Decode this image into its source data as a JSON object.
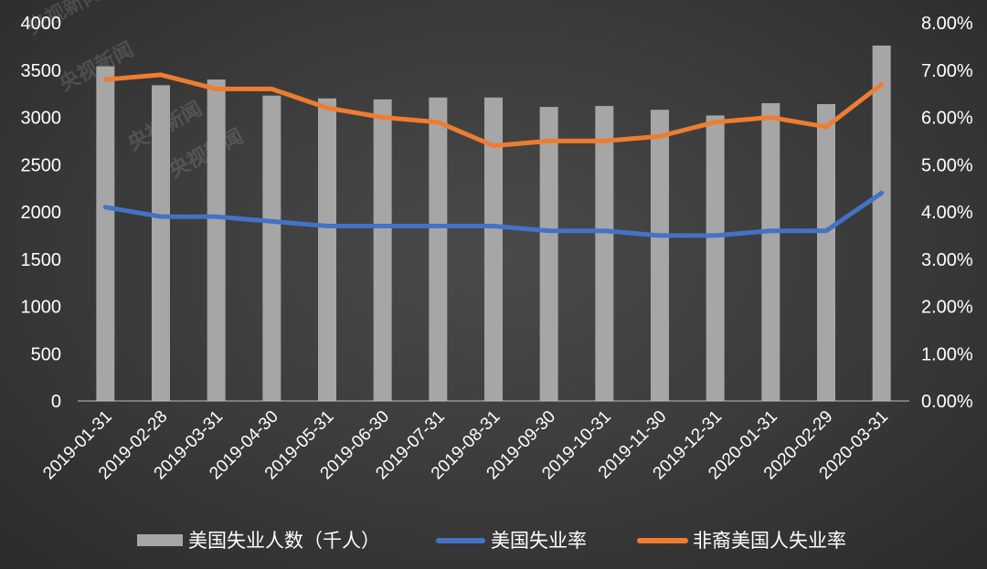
{
  "chart_data": {
    "type": "bar+line",
    "categories": [
      "2019-01-31",
      "2019-02-28",
      "2019-03-31",
      "2019-04-30",
      "2019-05-31",
      "2019-06-30",
      "2019-07-31",
      "2019-08-31",
      "2019-09-30",
      "2019-10-31",
      "2019-11-30",
      "2019-12-31",
      "2020-01-31",
      "2020-02-29",
      "2020-03-31"
    ],
    "bar_series": {
      "name": "美国失业人数（千人）",
      "color": "#a6a6a6",
      "axis": "left",
      "values": [
        3540,
        3340,
        3400,
        3230,
        3200,
        3190,
        3210,
        3210,
        3110,
        3120,
        3080,
        3020,
        3150,
        3140,
        3760
      ]
    },
    "line_series": [
      {
        "name": "美国失业率",
        "color": "#4472c4",
        "axis": "right",
        "values": [
          0.041,
          0.039,
          0.039,
          0.038,
          0.037,
          0.037,
          0.037,
          0.037,
          0.036,
          0.036,
          0.035,
          0.035,
          0.036,
          0.036,
          0.044
        ]
      },
      {
        "name": "非裔美国人失业率",
        "color": "#ed7d31",
        "axis": "right",
        "values": [
          0.068,
          0.069,
          0.066,
          0.066,
          0.062,
          0.06,
          0.059,
          0.054,
          0.055,
          0.055,
          0.056,
          0.059,
          0.06,
          0.058,
          0.067
        ]
      }
    ],
    "y_left": {
      "min": 0,
      "max": 4000,
      "ticks": [
        "0",
        "500",
        "1000",
        "1500",
        "2000",
        "2500",
        "3000",
        "3500",
        "4000"
      ]
    },
    "y_right": {
      "min": 0,
      "max": 0.08,
      "ticks": [
        "0.00%",
        "1.00%",
        "2.00%",
        "3.00%",
        "4.00%",
        "5.00%",
        "6.00%",
        "7.00%",
        "8.00%"
      ]
    },
    "legend_position": "bottom",
    "grid": false
  },
  "watermarks": [
    "央视新闻",
    "央视新闻",
    "央视新闻",
    "央视新闻"
  ]
}
